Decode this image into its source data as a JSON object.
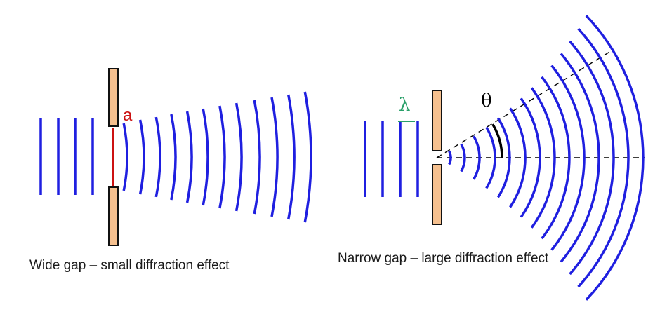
{
  "left_panel": {
    "caption": "Wide gap – small diffraction effect",
    "gap_label": "a"
  },
  "right_panel": {
    "caption": "Narrow gap – large diffraction effect",
    "wavelength_label": "λ",
    "angle_label": "θ"
  },
  "colors": {
    "wave": "#1f1fe0",
    "barrier_fill": "#f5c08f",
    "barrier_stroke": "#111111",
    "gap_marker": "#cc1111",
    "wavelength_marker": "#2aa06a",
    "angle_arc": "#000000"
  }
}
